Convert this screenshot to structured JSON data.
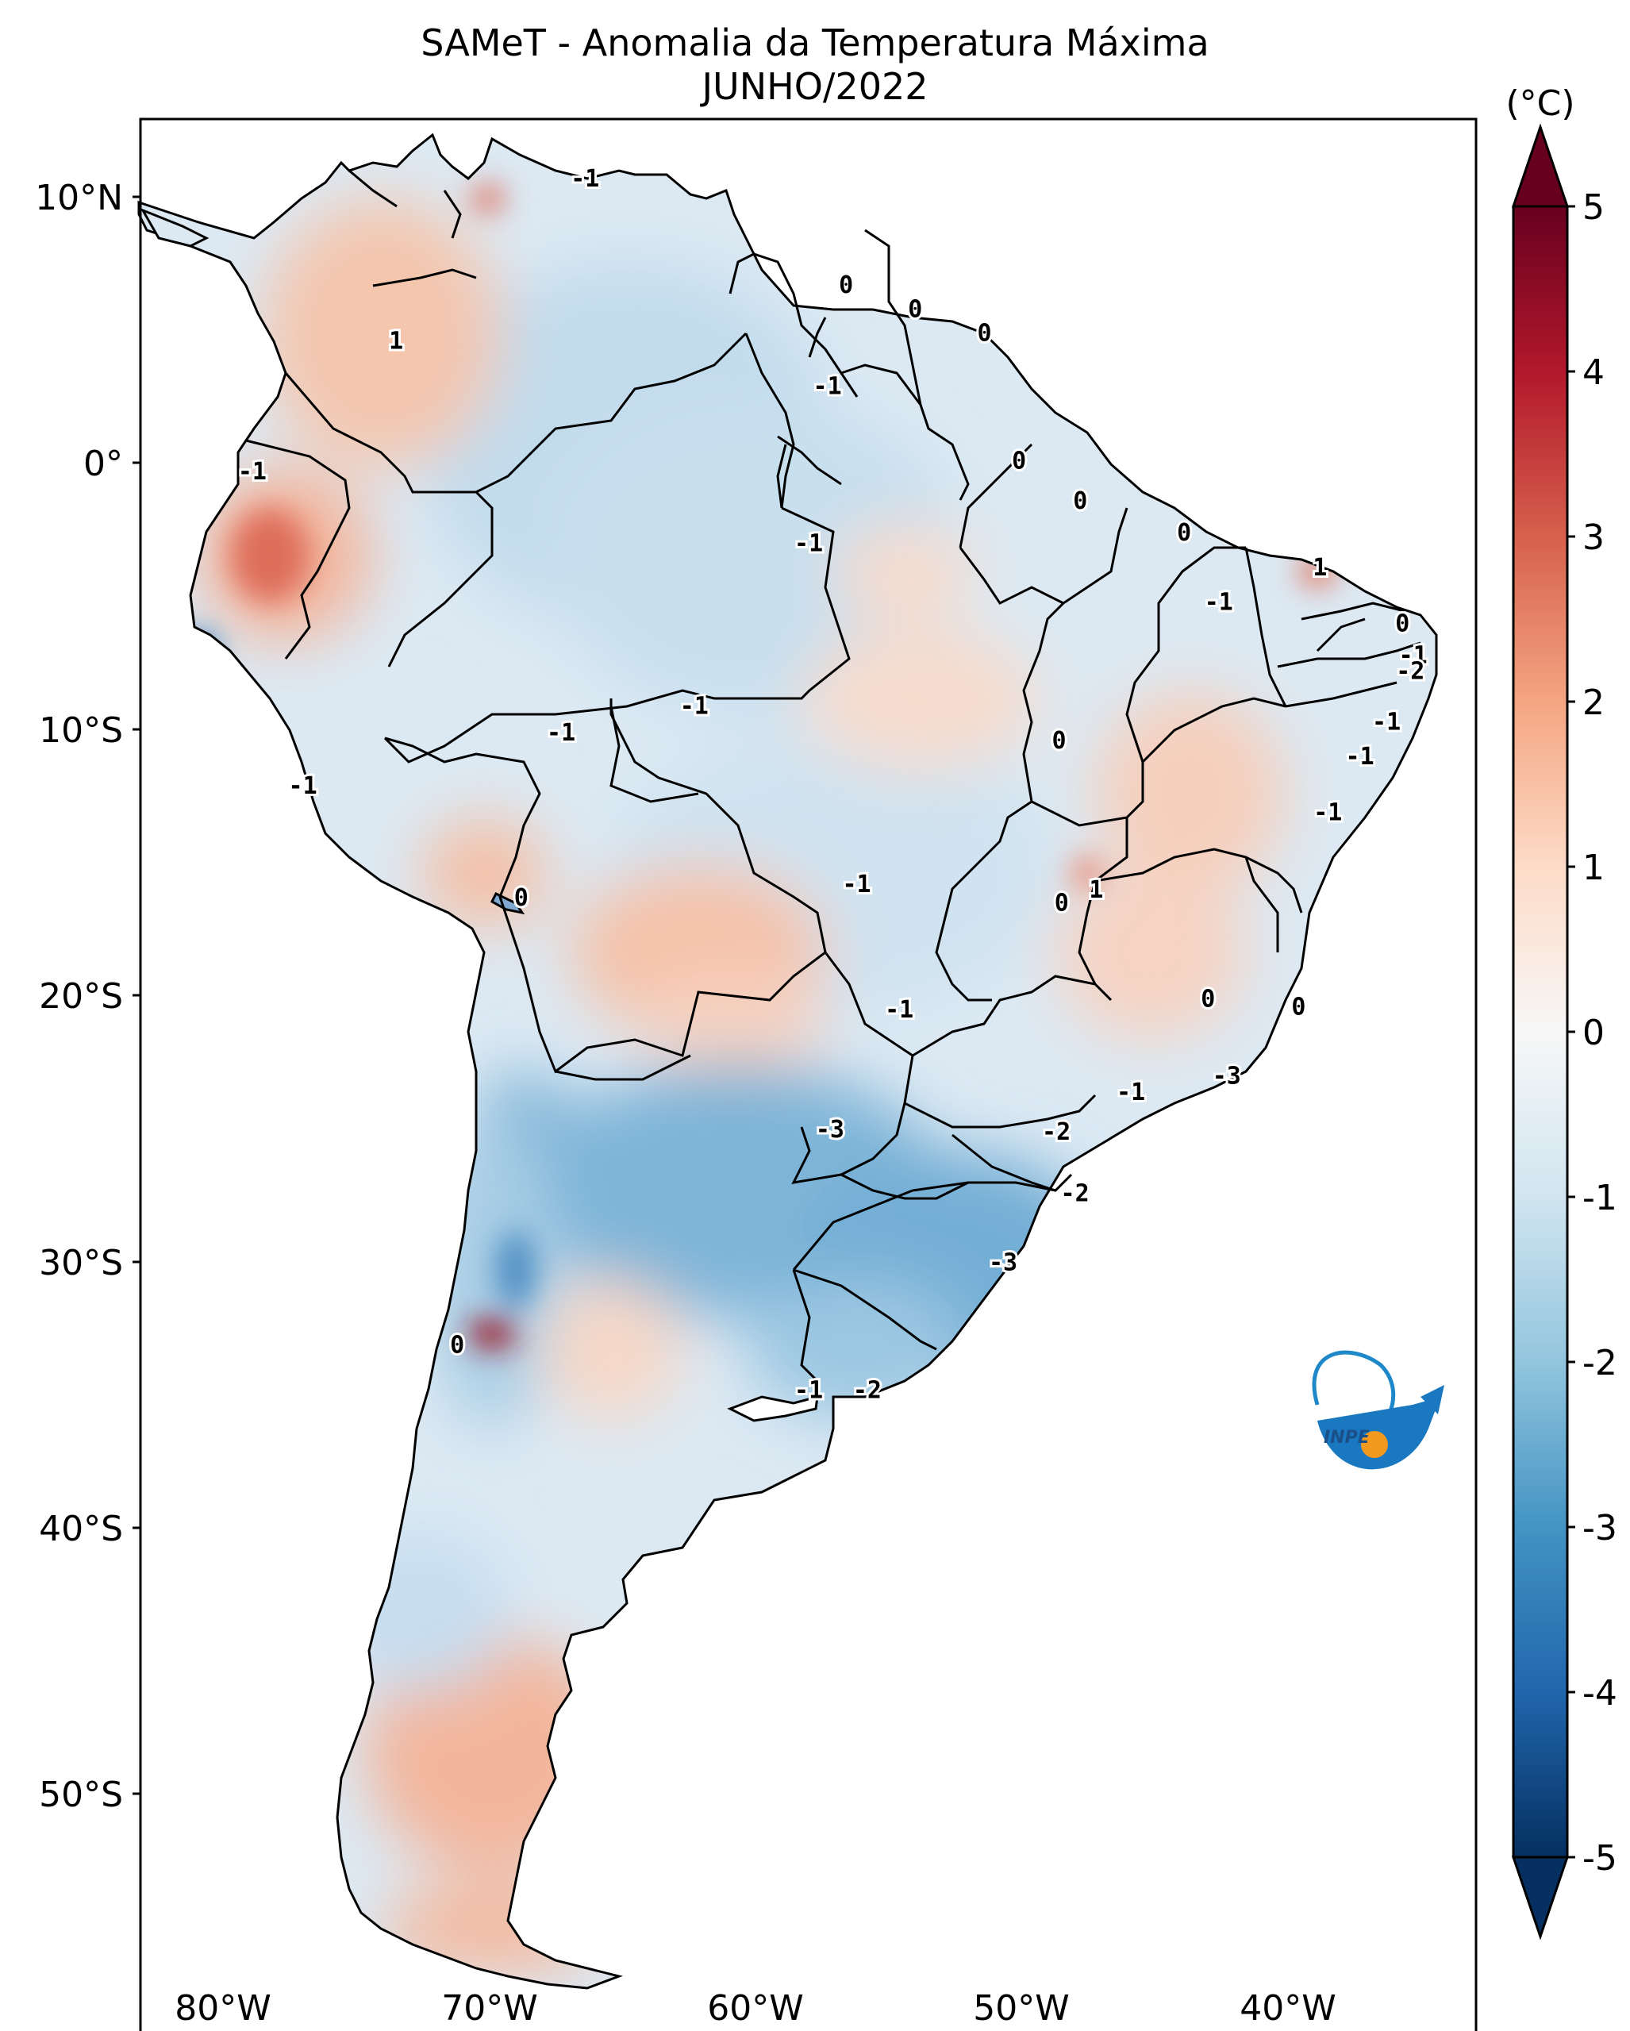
{
  "title": {
    "line1": "SAMeT - Anomalia da Temperatura Máxima",
    "line2": "JUNHO/2022"
  },
  "map": {
    "lat_ticks": [
      "10°N",
      "0°",
      "10°S",
      "20°S",
      "30°S",
      "40°S",
      "50°S"
    ],
    "lon_ticks": [
      "80°W",
      "70°W",
      "60°W",
      "50°W",
      "40°W"
    ],
    "contour_labels": [
      {
        "text": "-1",
        "lon": -66.4,
        "lat": 10.7
      },
      {
        "text": "0",
        "lon": -56.6,
        "lat": 6.7
      },
      {
        "text": "0",
        "lon": -54.0,
        "lat": 5.8
      },
      {
        "text": "0",
        "lon": -51.4,
        "lat": 4.9
      },
      {
        "text": "-1",
        "lon": -57.3,
        "lat": 2.9
      },
      {
        "text": "1",
        "lon": -73.5,
        "lat": 4.6
      },
      {
        "text": "-1",
        "lon": -78.9,
        "lat": -0.3
      },
      {
        "text": "0",
        "lon": -50.1,
        "lat": 0.1
      },
      {
        "text": "0",
        "lon": -47.8,
        "lat": -1.4
      },
      {
        "text": "0",
        "lon": -43.9,
        "lat": -2.6
      },
      {
        "text": "-1",
        "lon": -58.0,
        "lat": -3.0
      },
      {
        "text": "1",
        "lon": -38.8,
        "lat": -3.9
      },
      {
        "text": "-1",
        "lon": -42.6,
        "lat": -5.2
      },
      {
        "text": "0",
        "lon": -35.7,
        "lat": -6.0
      },
      {
        "text": "-1",
        "lon": -35.3,
        "lat": -7.2
      },
      {
        "text": "-2",
        "lon": -35.4,
        "lat": -7.8
      },
      {
        "text": "-1",
        "lon": -62.3,
        "lat": -9.1
      },
      {
        "text": "-1",
        "lon": -67.3,
        "lat": -10.1
      },
      {
        "text": "-1",
        "lon": -36.3,
        "lat": -9.7
      },
      {
        "text": "0",
        "lon": -48.6,
        "lat": -10.4
      },
      {
        "text": "-1",
        "lon": -37.3,
        "lat": -11.0
      },
      {
        "text": "-1",
        "lon": -77.0,
        "lat": -12.1
      },
      {
        "text": "-1",
        "lon": -38.5,
        "lat": -13.1
      },
      {
        "text": "-1",
        "lon": -56.2,
        "lat": -15.8
      },
      {
        "text": "1",
        "lon": -47.2,
        "lat": -16.0
      },
      {
        "text": "0",
        "lon": -48.5,
        "lat": -16.5
      },
      {
        "text": "0",
        "lon": -68.8,
        "lat": -16.3
      },
      {
        "text": "0",
        "lon": -43.0,
        "lat": -20.1
      },
      {
        "text": "-1",
        "lon": -54.6,
        "lat": -20.5
      },
      {
        "text": "0",
        "lon": -39.6,
        "lat": -20.4
      },
      {
        "text": "-3",
        "lon": -42.3,
        "lat": -23.0
      },
      {
        "text": "-1",
        "lon": -45.9,
        "lat": -23.6
      },
      {
        "text": "-3",
        "lon": -57.2,
        "lat": -25.0
      },
      {
        "text": "-2",
        "lon": -48.7,
        "lat": -25.1
      },
      {
        "text": "-2",
        "lon": -48.0,
        "lat": -27.4
      },
      {
        "text": "-3",
        "lon": -50.7,
        "lat": -30.0
      },
      {
        "text": "0",
        "lon": -71.2,
        "lat": -33.1
      },
      {
        "text": "-1",
        "lon": -58.0,
        "lat": -34.8
      },
      {
        "text": "-2",
        "lon": -55.8,
        "lat": -34.8
      }
    ]
  },
  "colorbar": {
    "unit": "(°C)",
    "ticks": [
      "5",
      "4",
      "3",
      "2",
      "1",
      "0",
      "-1",
      "-2",
      "-3",
      "-4",
      "-5"
    ],
    "colors": [
      "#053061",
      "#2166ac",
      "#4393c3",
      "#92c5de",
      "#d1e5f0",
      "#f7f7f7",
      "#fddbc7",
      "#f4a582",
      "#d6604d",
      "#b2182b",
      "#67001f"
    ]
  },
  "logo": {
    "text": "INPE"
  }
}
